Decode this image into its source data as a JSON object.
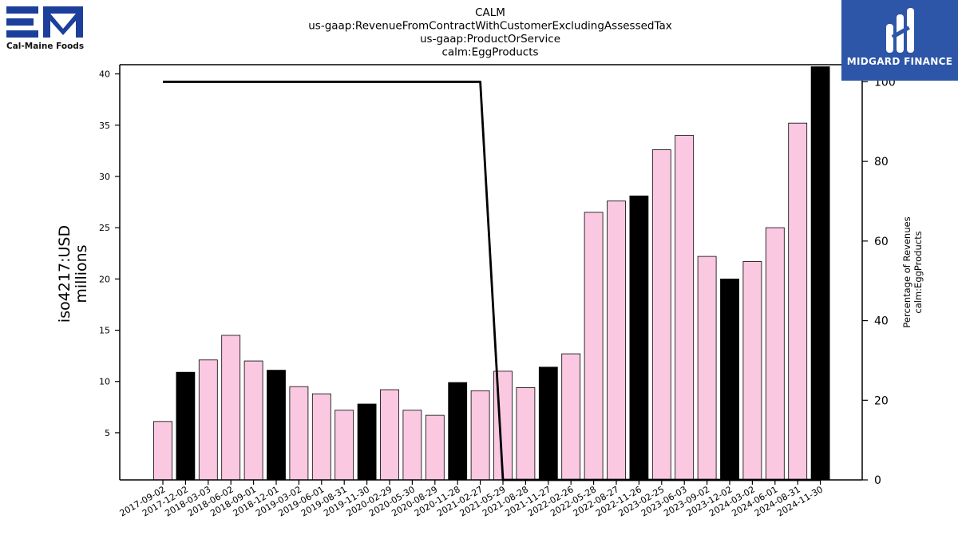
{
  "chart_data": {
    "type": "bar",
    "title_lines": [
      "CALM",
      "us-gaap:RevenueFromContractWithCustomerExcludingAssessedTax",
      "us-gaap:ProductOrService",
      "calm:EggProducts"
    ],
    "ylabel_lines": [
      "iso4217:USD",
      "millions"
    ],
    "y2label_lines": [
      "Percentage of Revenues",
      "calm:EggProducts"
    ],
    "categories": [
      "2017-09-02",
      "2017-12-02",
      "2018-03-03",
      "2018-06-02",
      "2018-09-01",
      "2018-12-01",
      "2019-03-02",
      "2019-06-01",
      "2019-08-31",
      "2019-11-30",
      "2020-02-29",
      "2020-05-30",
      "2020-08-29",
      "2020-11-28",
      "2021-02-27",
      "2021-05-29",
      "2021-08-28",
      "2021-11-27",
      "2022-02-26",
      "2022-05-28",
      "2022-08-27",
      "2022-11-26",
      "2023-02-25",
      "2023-06-03",
      "2023-09-02",
      "2023-12-02",
      "2024-03-02",
      "2024-06-01",
      "2024-08-31",
      "2024-11-30"
    ],
    "values": [
      6.1,
      10.9,
      12.1,
      14.5,
      12.0,
      11.1,
      9.5,
      8.8,
      7.2,
      7.8,
      9.2,
      7.2,
      6.7,
      9.9,
      9.1,
      11.0,
      9.4,
      11.4,
      12.7,
      26.5,
      27.6,
      28.1,
      32.6,
      34.0,
      22.2,
      20.0,
      21.7,
      25.0,
      35.2,
      40.7
    ],
    "bar_colors": [
      "#fbc8e2",
      "#000000",
      "#fbc8e2",
      "#fbc8e2",
      "#fbc8e2",
      "#000000",
      "#fbc8e2",
      "#fbc8e2",
      "#fbc8e2",
      "#000000",
      "#fbc8e2",
      "#fbc8e2",
      "#fbc8e2",
      "#000000",
      "#fbc8e2",
      "#fbc8e2",
      "#fbc8e2",
      "#000000",
      "#fbc8e2",
      "#fbc8e2",
      "#fbc8e2",
      "#000000",
      "#fbc8e2",
      "#fbc8e2",
      "#fbc8e2",
      "#000000",
      "#fbc8e2",
      "#fbc8e2",
      "#fbc8e2",
      "#000000"
    ],
    "line_percent": [
      100,
      100,
      100,
      100,
      100,
      100,
      100,
      100,
      100,
      100,
      100,
      100,
      100,
      100,
      100,
      0,
      0,
      0,
      0,
      0,
      0,
      0,
      0,
      0,
      0,
      0,
      0,
      0,
      0,
      0
    ],
    "yticks": [
      5,
      10,
      15,
      20,
      25,
      30,
      35,
      40
    ],
    "ylim": [
      0.4,
      40.9
    ],
    "y2ticks": [
      0,
      20,
      40,
      60,
      80,
      100
    ],
    "y2lim": [
      0,
      104.3
    ],
    "grid": false,
    "legend": "none"
  },
  "logos": {
    "left_company": "Cal-Maine Foods",
    "right_company": "MIDGARD FINANCE",
    "left_color": "#1b3f9a",
    "right_color": "#2d56a8"
  }
}
